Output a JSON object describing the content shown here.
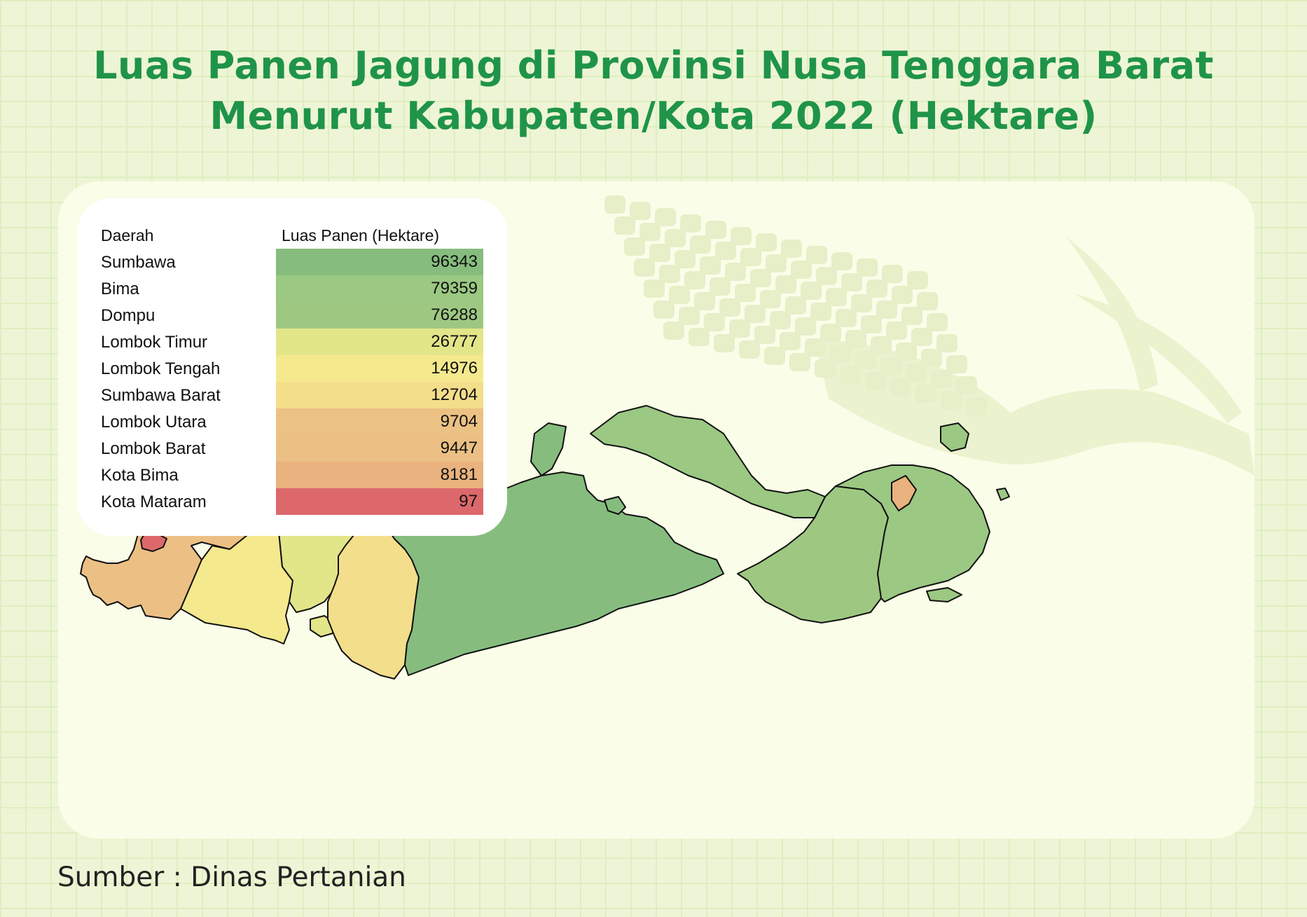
{
  "title": {
    "line1": "Luas Panen Jagung di Provinsi Nusa Tenggara Barat",
    "line2": "Menurut Kabupaten/Kota 2022 (Hektare)"
  },
  "legend": {
    "col_region": "Daerah",
    "col_value": "Luas Panen (Hektare)"
  },
  "chart_data": {
    "type": "table",
    "columns": [
      "Daerah",
      "Luas Panen (Hektare)"
    ],
    "rows": [
      {
        "name": "Sumbawa",
        "value": 96343,
        "color": "#86bd7e"
      },
      {
        "name": "Bima",
        "value": 79359,
        "color": "#9bc882"
      },
      {
        "name": "Dompu",
        "value": 76288,
        "color": "#9ec882"
      },
      {
        "name": "Lombok Timur",
        "value": 26777,
        "color": "#e3e589"
      },
      {
        "name": "Lombok Tengah",
        "value": 14976,
        "color": "#f5e98d"
      },
      {
        "name": "Sumbawa Barat",
        "value": 12704,
        "color": "#f3de8b"
      },
      {
        "name": "Lombok Utara",
        "value": 9704,
        "color": "#ecc184"
      },
      {
        "name": "Lombok Barat",
        "value": 9447,
        "color": "#ecc084"
      },
      {
        "name": "Kota Bima",
        "value": 8181,
        "color": "#e9b27e"
      },
      {
        "name": "Kota Mataram",
        "value": 97,
        "color": "#dc686b"
      }
    ]
  },
  "source": "Sumber : Dinas Pertanian"
}
